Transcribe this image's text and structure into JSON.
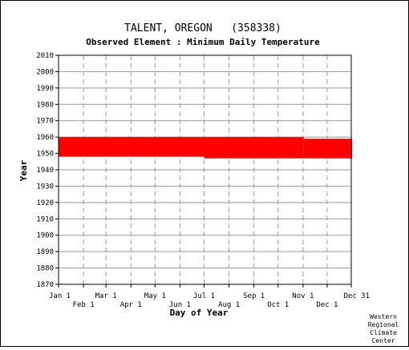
{
  "chart_data": {
    "type": "bar",
    "title": "TALENT, OREGON   (358338)",
    "subtitle": "Observed Element : Minimum Daily Temperature",
    "xlabel": "Day of Year",
    "ylabel": "Year",
    "ylim": [
      1870,
      2010
    ],
    "y_ticks": [
      2010,
      2000,
      1990,
      1980,
      1970,
      1960,
      1950,
      1940,
      1930,
      1920,
      1910,
      1900,
      1890,
      1880,
      1870
    ],
    "xlim": [
      1,
      365
    ],
    "x_ticks_upper": [
      {
        "label": "Jan 1",
        "day": 1
      },
      {
        "label": "Mar 1",
        "day": 60
      },
      {
        "label": "May 1",
        "day": 121
      },
      {
        "label": "Jul 1",
        "day": 182
      },
      {
        "label": "Sep 1",
        "day": 244
      },
      {
        "label": "Nov 1",
        "day": 305
      },
      {
        "label": "Dec 31",
        "day": 365
      }
    ],
    "x_ticks_lower": [
      {
        "label": "Feb 1",
        "day": 32
      },
      {
        "label": "Apr 1",
        "day": 91
      },
      {
        "label": "Jun 1",
        "day": 152
      },
      {
        "label": "Aug 1",
        "day": 213
      },
      {
        "label": "Oct 1",
        "day": 274
      },
      {
        "label": "Dec 1",
        "day": 335
      }
    ],
    "grid": true,
    "series": [
      {
        "color": "#ff0000",
        "segments": [
          {
            "day_start": 1,
            "day_end": 181,
            "year_start": 1948,
            "year_end": 1960
          },
          {
            "day_start": 182,
            "day_end": 305,
            "year_start": 1947,
            "year_end": 1960
          },
          {
            "day_start": 306,
            "day_end": 365,
            "year_start": 1947,
            "year_end": 1959
          }
        ]
      }
    ]
  },
  "credit": [
    "Western",
    "Regional",
    "Climate",
    "Center"
  ]
}
